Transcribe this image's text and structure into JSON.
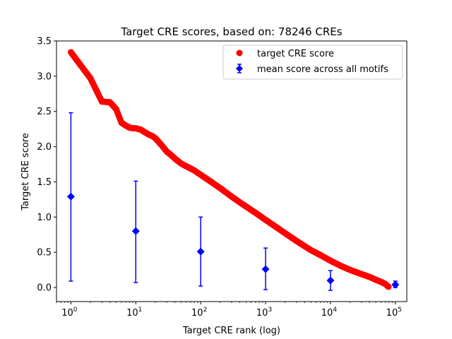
{
  "chart_data": {
    "type": "scatter",
    "title": "Target CRE scores, based on: 78246 CREs",
    "xlabel": "Target CRE rank (log)",
    "ylabel": "Target CRE score",
    "xscale": "log",
    "xlim": [
      0.6,
      150000
    ],
    "ylim": [
      -0.2,
      3.5
    ],
    "yticks": [
      "0.0",
      "0.5",
      "1.0",
      "1.5",
      "2.0",
      "2.5",
      "3.0",
      "3.5"
    ],
    "xticks": [
      {
        "base": "10",
        "exp": "0",
        "value": 1
      },
      {
        "base": "10",
        "exp": "1",
        "value": 10
      },
      {
        "base": "10",
        "exp": "2",
        "value": 100
      },
      {
        "base": "10",
        "exp": "3",
        "value": 1000
      },
      {
        "base": "10",
        "exp": "4",
        "value": 10000
      },
      {
        "base": "10",
        "exp": "5",
        "value": 100000
      }
    ],
    "legend_position": "top-right",
    "series": [
      {
        "name": "target CRE score",
        "marker": "circle",
        "color": "#ff0000",
        "x": [
          1,
          2,
          3,
          4,
          5,
          6,
          7,
          8,
          9,
          10,
          12,
          14,
          16,
          18,
          20,
          25,
          30,
          35,
          40,
          50,
          60,
          70,
          80,
          100,
          150,
          200,
          300,
          400,
          500,
          700,
          1000,
          1500,
          2000,
          3000,
          5000,
          7000,
          10000,
          15000,
          20000,
          30000,
          40000,
          50000,
          60000,
          70000,
          78246
        ],
        "y": [
          3.34,
          2.97,
          2.64,
          2.63,
          2.53,
          2.34,
          2.3,
          2.27,
          2.26,
          2.26,
          2.24,
          2.2,
          2.17,
          2.15,
          2.12,
          2.02,
          1.93,
          1.88,
          1.83,
          1.76,
          1.72,
          1.69,
          1.66,
          1.6,
          1.49,
          1.41,
          1.29,
          1.21,
          1.15,
          1.06,
          0.96,
          0.85,
          0.77,
          0.66,
          0.53,
          0.46,
          0.38,
          0.3,
          0.25,
          0.19,
          0.15,
          0.11,
          0.08,
          0.05,
          0.01
        ]
      },
      {
        "name": "mean score across all motifs",
        "marker": "diamond",
        "color": "#0000ff",
        "x": [
          1,
          10,
          100,
          1000,
          10000,
          100000
        ],
        "y": [
          1.29,
          0.8,
          0.51,
          0.26,
          0.1,
          0.04
        ],
        "err_low": [
          0.09,
          0.07,
          0.02,
          -0.03,
          -0.04,
          0.0
        ],
        "err_high": [
          2.48,
          1.51,
          1.0,
          0.56,
          0.24,
          0.09
        ]
      }
    ]
  }
}
